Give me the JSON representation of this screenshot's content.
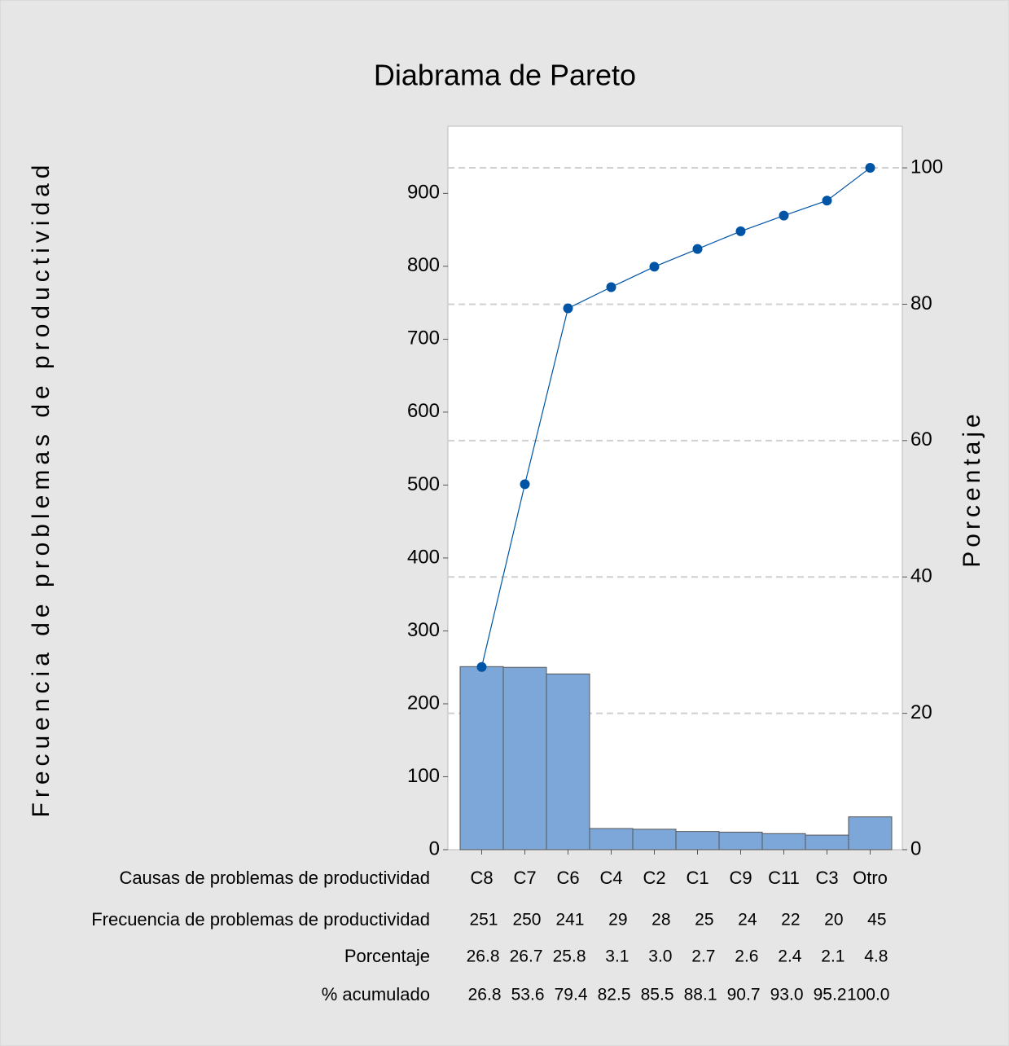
{
  "chart_data": {
    "type": "pareto",
    "title": "Diabrama de Pareto",
    "x_label": "Causas de problemas de productividad",
    "y_label": "Frecuencia de problemas de productividad",
    "y2_label": "Porcentaje",
    "cumulative_label": "% acumulado",
    "categories": [
      "C8",
      "C7",
      "C6",
      "C4",
      "C2",
      "C1",
      "C9",
      "C11",
      "C3",
      "Otro"
    ],
    "values": [
      251,
      250,
      241,
      29,
      28,
      25,
      24,
      22,
      20,
      45
    ],
    "bar_color": "#7da7d9",
    "percent": [
      26.8,
      26.7,
      25.8,
      3.1,
      3.0,
      2.7,
      2.6,
      2.4,
      2.1,
      4.8
    ],
    "percent_value_labels": [
      "26.8",
      "26.7",
      "25.8",
      "3.1",
      "3.0",
      "2.7",
      "2.6",
      "2.4",
      "2.1",
      "4.8"
    ],
    "cumulative": [
      26.8,
      53.6,
      79.4,
      82.5,
      85.5,
      88.1,
      90.7,
      93.0,
      95.2,
      100.0
    ],
    "cumulative_value_labels": [
      "26.8",
      "53.6",
      "79.4",
      "82.5",
      "85.5",
      "88.1",
      "90.7",
      "93.0",
      "95.2",
      "100.0"
    ],
    "line_color": "#0054a6",
    "ylim": [
      0,
      992
    ],
    "yticks": [
      0,
      100,
      200,
      300,
      400,
      500,
      600,
      700,
      800,
      900
    ],
    "y2lim": [
      0,
      106.1
    ],
    "y2ticks": [
      0,
      20,
      40,
      60,
      80,
      100
    ],
    "grid": true
  }
}
